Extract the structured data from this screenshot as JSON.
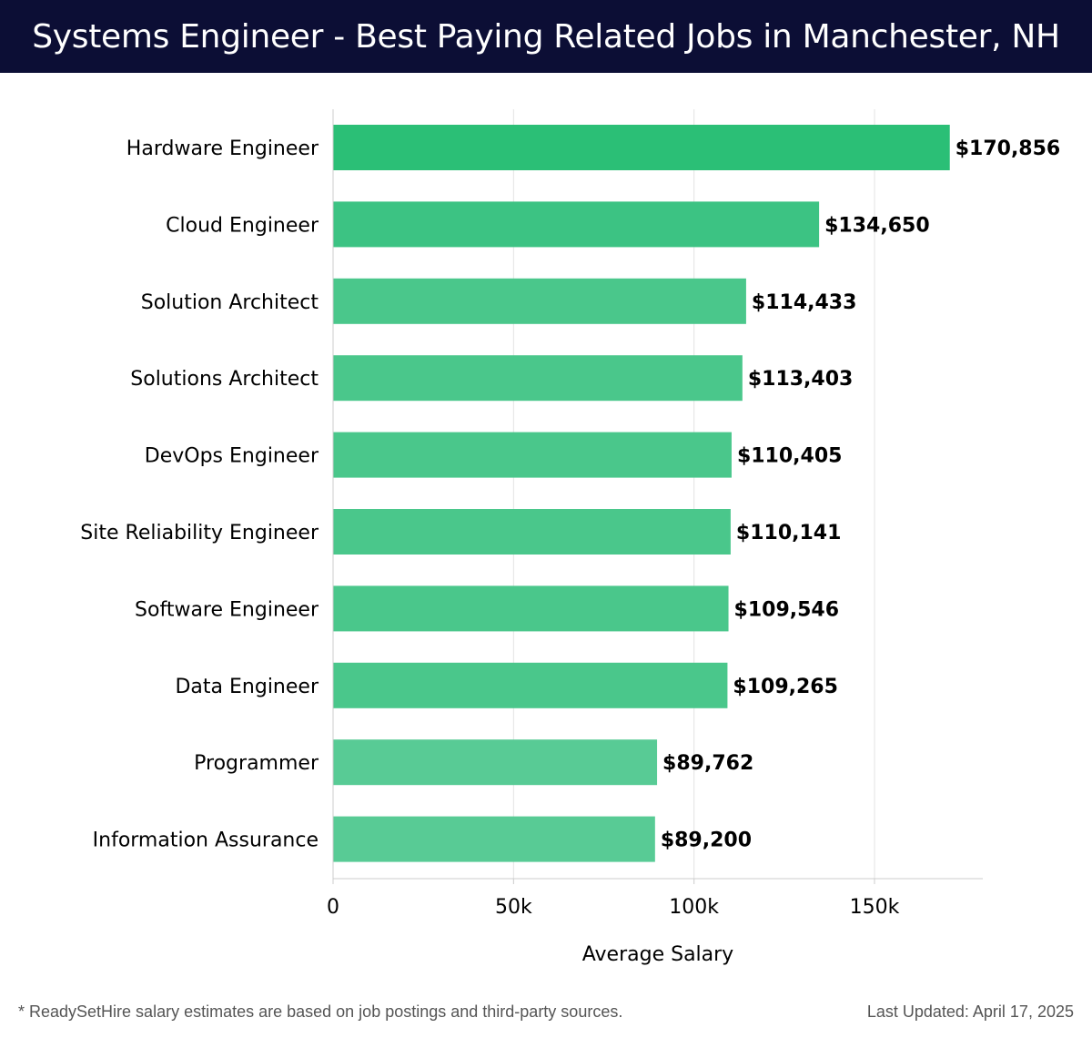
{
  "header": {
    "title": "Systems Engineer - Best Paying Related Jobs in Manchester, NH"
  },
  "chart_data": {
    "type": "bar",
    "orientation": "horizontal",
    "categories": [
      "Hardware Engineer",
      "Cloud Engineer",
      "Solution Architect",
      "Solutions Architect",
      "DevOps Engineer",
      "Site Reliability Engineer",
      "Software Engineer",
      "Data Engineer",
      "Programmer",
      "Information Assurance"
    ],
    "values": [
      170856,
      134650,
      114433,
      113403,
      110405,
      110141,
      109546,
      109265,
      89762,
      89200
    ],
    "value_labels": [
      "$170,856",
      "$134,650",
      "$114,433",
      "$113,403",
      "$110,405",
      "$110,141",
      "$109,546",
      "$109,265",
      "$89,762",
      "$89,200"
    ],
    "bar_colors": [
      "#2bbf76",
      "#3cc383",
      "#4ac78b",
      "#4ac78b",
      "#4ac78b",
      "#4ac78b",
      "#4ac78b",
      "#4ac78b",
      "#58cb95",
      "#58cb95"
    ],
    "xlabel": "Average Salary",
    "ylabel": "",
    "xlim": [
      0,
      180000
    ],
    "xticks": [
      0,
      50000,
      100000,
      150000
    ],
    "xtick_labels": [
      "0",
      "50k",
      "100k",
      "150k"
    ],
    "grid": "vertical"
  },
  "footer": {
    "note": "* ReadySetHire salary estimates are based on job postings and third-party sources.",
    "updated": "Last Updated: April 17, 2025"
  }
}
